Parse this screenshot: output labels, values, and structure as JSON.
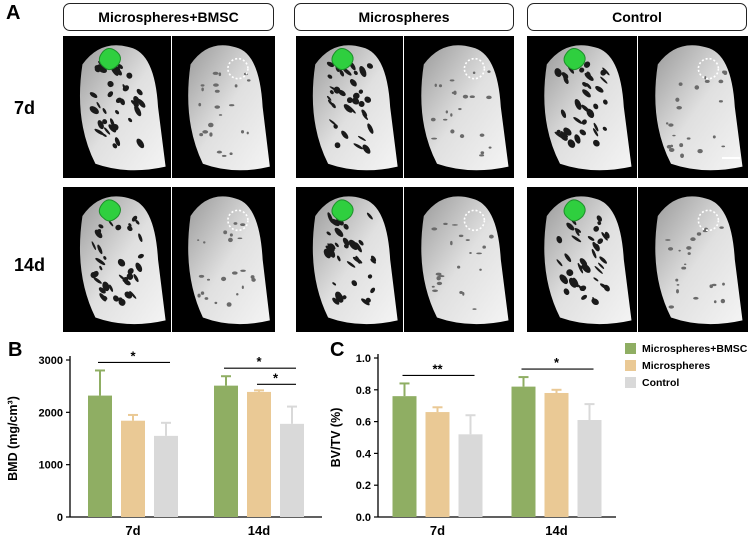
{
  "panel_a": {
    "letter": "A",
    "groups": [
      "Microspheres+BMSC",
      "Microspheres",
      "Control"
    ],
    "rows": [
      "7d",
      "14d"
    ]
  },
  "colors": {
    "microspheres_bmsc": "#8fae63",
    "microspheres": "#eac995",
    "control": "#d9d9d9",
    "implant": "#2fcf3f"
  },
  "legend": {
    "items": [
      {
        "label": "Microspheres+BMSC",
        "color": "#8fae63"
      },
      {
        "label": "Microspheres",
        "color": "#eac995"
      },
      {
        "label": "Control",
        "color": "#d9d9d9"
      }
    ]
  },
  "chart_data": [
    {
      "panel": "B",
      "type": "bar",
      "categories": [
        "7d",
        "14d"
      ],
      "ylabel": "BMD (mg/cm³)",
      "ylim": [
        0,
        3000
      ],
      "yticks": [
        "0",
        "1000",
        "2000",
        "3000"
      ],
      "series": [
        {
          "name": "Microspheres+BMSC",
          "values": [
            2320,
            2510
          ],
          "errors": [
            480,
            180
          ]
        },
        {
          "name": "Microspheres",
          "values": [
            1840,
            2390
          ],
          "errors": [
            110,
            30
          ]
        },
        {
          "name": "Control",
          "values": [
            1550,
            1780
          ],
          "errors": [
            250,
            330
          ]
        }
      ],
      "significance": [
        {
          "category": 0,
          "from": 0,
          "to": 2,
          "label": "*"
        },
        {
          "category": 1,
          "from": 0,
          "to": 2,
          "label": "*"
        },
        {
          "category": 1,
          "from": 1,
          "to": 2,
          "label": "*"
        }
      ]
    },
    {
      "panel": "C",
      "type": "bar",
      "categories": [
        "7d",
        "14d"
      ],
      "ylabel": "BV/TV (%)",
      "ylim": [
        0,
        1.0
      ],
      "yticks": [
        "0.0",
        "0.2",
        "0.4",
        "0.6",
        "0.8",
        "1.0"
      ],
      "series": [
        {
          "name": "Microspheres+BMSC",
          "values": [
            0.76,
            0.82
          ],
          "errors": [
            0.08,
            0.06
          ]
        },
        {
          "name": "Microspheres",
          "values": [
            0.66,
            0.78
          ],
          "errors": [
            0.03,
            0.02
          ]
        },
        {
          "name": "Control",
          "values": [
            0.52,
            0.61
          ],
          "errors": [
            0.12,
            0.1
          ]
        }
      ],
      "significance": [
        {
          "category": 0,
          "from": 0,
          "to": 2,
          "label": "**"
        },
        {
          "category": 1,
          "from": 0,
          "to": 2,
          "label": "*"
        }
      ]
    }
  ]
}
